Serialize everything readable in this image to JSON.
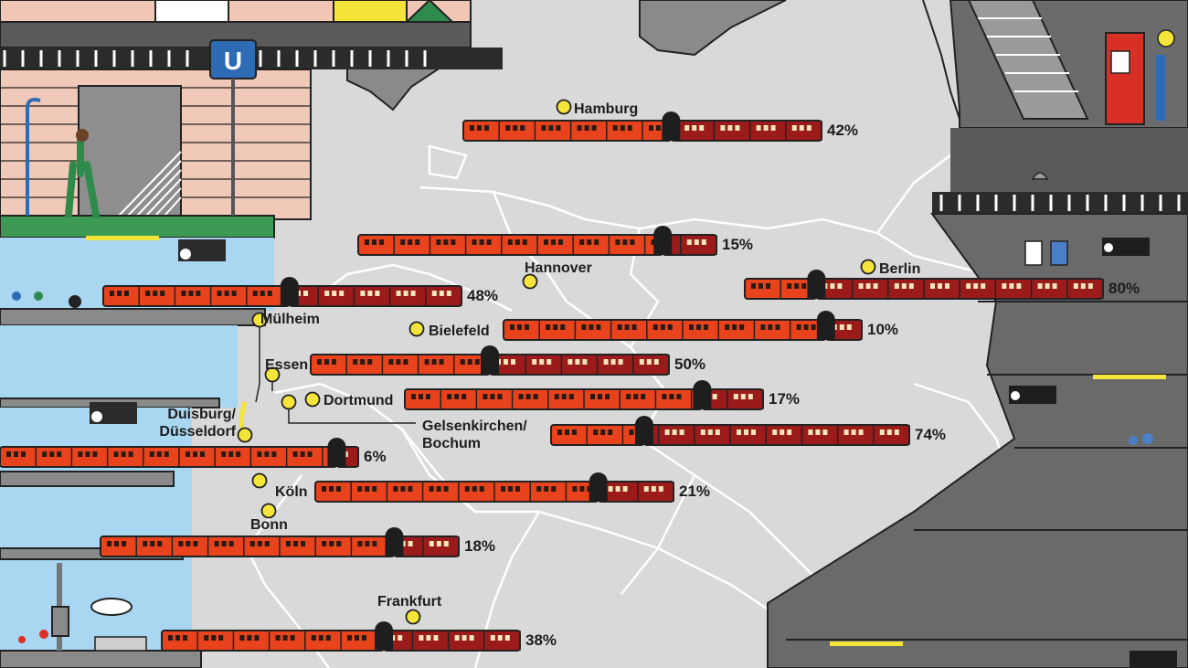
{
  "station_sign": "U",
  "colors": {
    "map_fill": "#d8d8d8",
    "border": "#ffffff",
    "outline": "#222222",
    "dark_area": "#6a6a6a",
    "train_orange": "#e8431c",
    "train_red": "#9b1b1b",
    "city_marker": "#f5e53b",
    "sky": "#a9d6f0"
  },
  "chart_data": {
    "type": "bar",
    "categories": [
      "Hamburg",
      "Hannover",
      "Mülheim",
      "Berlin",
      "Bielefeld",
      "Essen",
      "Dortmund",
      "Gelsenkirchen/ Bochum",
      "Duisburg/ Düsseldorf",
      "Köln",
      "Bonn",
      "Frankfurt"
    ],
    "values": [
      42,
      15,
      48,
      80,
      10,
      50,
      17,
      74,
      6,
      21,
      18,
      38
    ],
    "value_labels": [
      "42%",
      "15%",
      "48%",
      "80%",
      "10%",
      "50%",
      "17%",
      "74%",
      "6%",
      "21%",
      "18%",
      "38%"
    ],
    "ylim": [
      0,
      100
    ]
  }
}
